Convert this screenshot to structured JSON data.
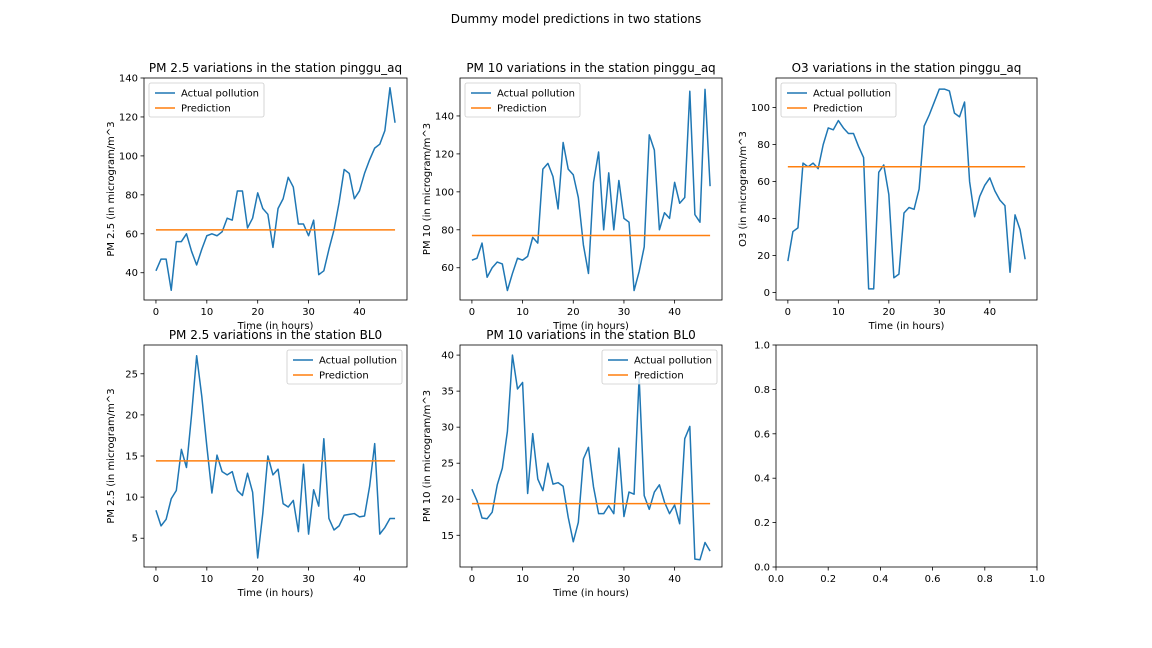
{
  "figure": {
    "suptitle": "Dummy model predictions in two stations"
  },
  "colors": {
    "actual": "#1f77b4",
    "prediction": "#ff7f0e",
    "axis": "#000000",
    "legend_border": "#cccccc"
  },
  "chart_data": [
    {
      "type": "line",
      "title": "PM 2.5 variations in the station pinggu_aq",
      "xlabel": "Time (in hours)",
      "ylabel": "PM 2.5 (in microgram/m^3",
      "xlim": [
        -2.35,
        49.35
      ],
      "ylim": [
        26,
        140
      ],
      "xticks": [
        0,
        10,
        20,
        30,
        40
      ],
      "yticks": [
        40,
        60,
        80,
        100,
        120,
        140
      ],
      "legend_position": "upper left",
      "grid": false,
      "x": [
        0,
        1,
        2,
        3,
        4,
        5,
        6,
        7,
        8,
        9,
        10,
        11,
        12,
        13,
        14,
        15,
        16,
        17,
        18,
        19,
        20,
        21,
        22,
        23,
        24,
        25,
        26,
        27,
        28,
        29,
        30,
        31,
        32,
        33,
        34,
        35,
        36,
        37,
        38,
        39,
        40,
        41,
        42,
        43,
        44,
        45,
        46,
        47
      ],
      "series": [
        {
          "name": "Actual pollution",
          "values": [
            41,
            47,
            47,
            31,
            56,
            56,
            60,
            51,
            44,
            52,
            59,
            60,
            59,
            61,
            68,
            67,
            82,
            82,
            63,
            68,
            81,
            73,
            70,
            53,
            73,
            78,
            89,
            84,
            65,
            65,
            59,
            67,
            39,
            41,
            52,
            62,
            76,
            93,
            91,
            78,
            82,
            91,
            98,
            104,
            106,
            113,
            135,
            117
          ]
        },
        {
          "name": "Prediction",
          "values": [
            62,
            62,
            62,
            62,
            62,
            62,
            62,
            62,
            62,
            62,
            62,
            62,
            62,
            62,
            62,
            62,
            62,
            62,
            62,
            62,
            62,
            62,
            62,
            62,
            62,
            62,
            62,
            62,
            62,
            62,
            62,
            62,
            62,
            62,
            62,
            62,
            62,
            62,
            62,
            62,
            62,
            62,
            62,
            62,
            62,
            62,
            62,
            62
          ]
        }
      ]
    },
    {
      "type": "line",
      "title": "PM 10 variations in the station pinggu_aq",
      "xlabel": "Time (in hours)",
      "ylabel": "PM 10 (in microgram/m^3",
      "xlim": [
        -2.35,
        49.35
      ],
      "ylim": [
        43,
        160
      ],
      "xticks": [
        0,
        10,
        20,
        30,
        40
      ],
      "yticks": [
        60,
        80,
        100,
        120,
        140
      ],
      "legend_position": "upper left",
      "grid": false,
      "x": [
        0,
        1,
        2,
        3,
        4,
        5,
        6,
        7,
        8,
        9,
        10,
        11,
        12,
        13,
        14,
        15,
        16,
        17,
        18,
        19,
        20,
        21,
        22,
        23,
        24,
        25,
        26,
        27,
        28,
        29,
        30,
        31,
        32,
        33,
        34,
        35,
        36,
        37,
        38,
        39,
        40,
        41,
        42,
        43,
        44,
        45,
        46,
        47
      ],
      "series": [
        {
          "name": "Actual pollution",
          "values": [
            64,
            65,
            73,
            55,
            60,
            63,
            62,
            48,
            57,
            65,
            64,
            66,
            76,
            73,
            112,
            115,
            108,
            91,
            126,
            112,
            109,
            97,
            72,
            57,
            105,
            121,
            80,
            110,
            80,
            106,
            86,
            84,
            48,
            58,
            71,
            130,
            122,
            80,
            89,
            86,
            105,
            94,
            97,
            153,
            88,
            84,
            154,
            103
          ]
        },
        {
          "name": "Prediction",
          "values": [
            77,
            77,
            77,
            77,
            77,
            77,
            77,
            77,
            77,
            77,
            77,
            77,
            77,
            77,
            77,
            77,
            77,
            77,
            77,
            77,
            77,
            77,
            77,
            77,
            77,
            77,
            77,
            77,
            77,
            77,
            77,
            77,
            77,
            77,
            77,
            77,
            77,
            77,
            77,
            77,
            77,
            77,
            77,
            77,
            77,
            77,
            77,
            77
          ]
        }
      ]
    },
    {
      "type": "line",
      "title": "O3 variations in the station pinggu_aq",
      "xlabel": "Time (in hours)",
      "ylabel": "O3 (in microgram/m^3",
      "xlim": [
        -2.35,
        49.35
      ],
      "ylim": [
        -4,
        116
      ],
      "xticks": [
        0,
        10,
        20,
        30,
        40
      ],
      "yticks": [
        0,
        20,
        40,
        60,
        80,
        100
      ],
      "legend_position": "upper left",
      "grid": false,
      "x": [
        0,
        1,
        2,
        3,
        4,
        5,
        6,
        7,
        8,
        9,
        10,
        11,
        12,
        13,
        14,
        15,
        16,
        17,
        18,
        19,
        20,
        21,
        22,
        23,
        24,
        25,
        26,
        27,
        28,
        29,
        30,
        31,
        32,
        33,
        34,
        35,
        36,
        37,
        38,
        39,
        40,
        41,
        42,
        43,
        44,
        45,
        46,
        47
      ],
      "series": [
        {
          "name": "Actual pollution",
          "values": [
            17,
            33,
            35,
            70,
            68,
            70,
            67,
            80,
            89,
            88,
            93,
            89,
            86,
            86,
            79,
            73,
            2,
            2,
            65,
            69,
            53,
            8,
            10,
            43,
            46,
            45,
            56,
            90,
            96,
            103,
            110,
            110,
            109,
            97,
            95,
            103,
            60,
            41,
            52,
            58,
            62,
            55,
            50,
            47,
            11,
            42,
            34,
            18
          ]
        },
        {
          "name": "Prediction",
          "values": [
            68,
            68,
            68,
            68,
            68,
            68,
            68,
            68,
            68,
            68,
            68,
            68,
            68,
            68,
            68,
            68,
            68,
            68,
            68,
            68,
            68,
            68,
            68,
            68,
            68,
            68,
            68,
            68,
            68,
            68,
            68,
            68,
            68,
            68,
            68,
            68,
            68,
            68,
            68,
            68,
            68,
            68,
            68,
            68,
            68,
            68,
            68,
            68
          ]
        }
      ]
    },
    {
      "type": "line",
      "title": "PM 2.5 variations in the station BL0",
      "xlabel": "Time (in hours)",
      "ylabel": "PM 2.5 (in microgram/m^3",
      "xlim": [
        -2.35,
        49.35
      ],
      "ylim": [
        1.5,
        28.5
      ],
      "xticks": [
        0,
        10,
        20,
        30,
        40
      ],
      "yticks": [
        5,
        10,
        15,
        20,
        25
      ],
      "legend_position": "upper right",
      "grid": false,
      "x": [
        0,
        1,
        2,
        3,
        4,
        5,
        6,
        7,
        8,
        9,
        10,
        11,
        12,
        13,
        14,
        15,
        16,
        17,
        18,
        19,
        20,
        21,
        22,
        23,
        24,
        25,
        26,
        27,
        28,
        29,
        30,
        31,
        32,
        33,
        34,
        35,
        36,
        37,
        38,
        39,
        40,
        41,
        42,
        43,
        44,
        45,
        46,
        47
      ],
      "series": [
        {
          "name": "Actual pollution",
          "values": [
            8.4,
            6.5,
            7.3,
            9.8,
            10.8,
            15.8,
            13.6,
            20,
            27.2,
            22.3,
            16.2,
            10.5,
            15.1,
            13.1,
            12.7,
            13.1,
            10.8,
            10.2,
            12.9,
            10.6,
            2.6,
            8,
            15,
            12.7,
            13.4,
            9.2,
            8.8,
            9.6,
            5.8,
            14,
            5.5,
            10.9,
            8.9,
            17.1,
            7.4,
            6,
            6.5,
            7.8,
            7.9,
            8,
            7.6,
            7.7,
            11.3,
            16.5,
            5.5,
            6.3,
            7.4,
            7.4
          ]
        },
        {
          "name": "Prediction",
          "values": [
            14.4,
            14.4,
            14.4,
            14.4,
            14.4,
            14.4,
            14.4,
            14.4,
            14.4,
            14.4,
            14.4,
            14.4,
            14.4,
            14.4,
            14.4,
            14.4,
            14.4,
            14.4,
            14.4,
            14.4,
            14.4,
            14.4,
            14.4,
            14.4,
            14.4,
            14.4,
            14.4,
            14.4,
            14.4,
            14.4,
            14.4,
            14.4,
            14.4,
            14.4,
            14.4,
            14.4,
            14.4,
            14.4,
            14.4,
            14.4,
            14.4,
            14.4,
            14.4,
            14.4,
            14.4,
            14.4,
            14.4,
            14.4
          ]
        }
      ]
    },
    {
      "type": "line",
      "title": "PM 10 variations in the station BL0",
      "xlabel": "Time (in hours)",
      "ylabel": "PM 10 (in microgram/m^3",
      "xlim": [
        -2.35,
        49.35
      ],
      "ylim": [
        10.6,
        41.4
      ],
      "xticks": [
        0,
        10,
        20,
        30,
        40
      ],
      "yticks": [
        15,
        20,
        25,
        30,
        35,
        40
      ],
      "legend_position": "upper right",
      "grid": false,
      "x": [
        0,
        1,
        2,
        3,
        4,
        5,
        6,
        7,
        8,
        9,
        10,
        11,
        12,
        13,
        14,
        15,
        16,
        17,
        18,
        19,
        20,
        21,
        22,
        23,
        24,
        25,
        26,
        27,
        28,
        29,
        30,
        31,
        32,
        33,
        34,
        35,
        36,
        37,
        38,
        39,
        40,
        41,
        42,
        43,
        44,
        45,
        46,
        47
      ],
      "series": [
        {
          "name": "Actual pollution",
          "values": [
            21.4,
            19.8,
            17.4,
            17.3,
            18.2,
            22,
            24.3,
            29.4,
            40,
            35.3,
            36.2,
            20.8,
            29.1,
            22.8,
            21.2,
            25,
            22.1,
            22.3,
            21.8,
            17.5,
            14.1,
            16.8,
            25.6,
            27.2,
            21.7,
            18,
            18,
            19.1,
            18,
            27.1,
            17.6,
            21,
            20.7,
            36.9,
            20.5,
            18.6,
            21,
            22,
            19.6,
            18,
            19.2,
            16.6,
            28.4,
            30.1,
            11.7,
            11.6,
            14,
            12.8
          ]
        },
        {
          "name": "Prediction",
          "values": [
            19.4,
            19.4,
            19.4,
            19.4,
            19.4,
            19.4,
            19.4,
            19.4,
            19.4,
            19.4,
            19.4,
            19.4,
            19.4,
            19.4,
            19.4,
            19.4,
            19.4,
            19.4,
            19.4,
            19.4,
            19.4,
            19.4,
            19.4,
            19.4,
            19.4,
            19.4,
            19.4,
            19.4,
            19.4,
            19.4,
            19.4,
            19.4,
            19.4,
            19.4,
            19.4,
            19.4,
            19.4,
            19.4,
            19.4,
            19.4,
            19.4,
            19.4,
            19.4,
            19.4,
            19.4,
            19.4,
            19.4,
            19.4
          ]
        }
      ]
    },
    {
      "type": "line",
      "title": "",
      "xlabel": "",
      "ylabel": "",
      "xlim": [
        0,
        1
      ],
      "ylim": [
        0,
        1
      ],
      "xticks": [
        0.0,
        0.2,
        0.4,
        0.6,
        0.8,
        1.0
      ],
      "yticks": [
        0.0,
        0.2,
        0.4,
        0.6,
        0.8,
        1.0
      ],
      "tick_decimals": 1,
      "legend_position": "",
      "grid": false,
      "x": [],
      "series": []
    }
  ]
}
